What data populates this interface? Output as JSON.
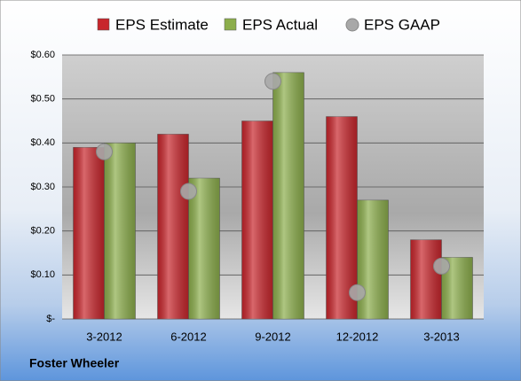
{
  "chart_data": {
    "type": "bar",
    "categories": [
      "3-2012",
      "6-2012",
      "9-2012",
      "12-2012",
      "3-2013"
    ],
    "series": [
      {
        "name": "EPS Estimate",
        "color": "#c8262c",
        "values": [
          0.39,
          0.42,
          0.45,
          0.46,
          0.18
        ]
      },
      {
        "name": "EPS Actual",
        "color": "#8cae4c",
        "values": [
          0.4,
          0.32,
          0.56,
          0.27,
          0.14
        ]
      },
      {
        "name": "EPS GAAP",
        "type": "scatter",
        "color": "#a8a8a8",
        "values": [
          0.38,
          0.29,
          0.54,
          0.06,
          0.12
        ]
      }
    ],
    "ylim": [
      0,
      0.6
    ],
    "yticks": [
      {
        "value": 0,
        "label": "$-"
      },
      {
        "value": 0.1,
        "label": "$0.10"
      },
      {
        "value": 0.2,
        "label": "$0.20"
      },
      {
        "value": 0.3,
        "label": "$0.30"
      },
      {
        "value": 0.4,
        "label": "$0.40"
      },
      {
        "value": 0.5,
        "label": "$0.50"
      },
      {
        "value": 0.6,
        "label": "$0.60"
      }
    ],
    "grid": true,
    "caption": "Foster Wheeler"
  }
}
